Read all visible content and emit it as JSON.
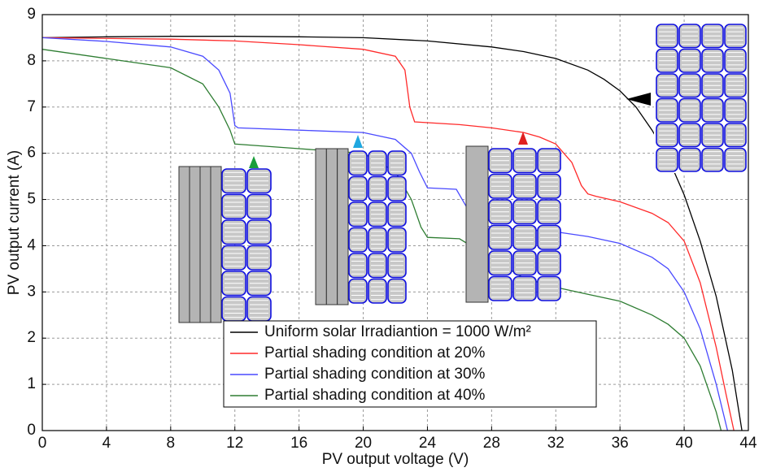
{
  "chart_data": {
    "type": "line",
    "xlabel": "PV output voltage (V)",
    "ylabel": "PV output current (A)",
    "xlim": [
      0,
      44
    ],
    "xticks": [
      0,
      4,
      8,
      12,
      16,
      20,
      24,
      28,
      32,
      36,
      40,
      44
    ],
    "ylim": [
      0,
      9
    ],
    "yticks": [
      0,
      1,
      2,
      3,
      4,
      5,
      6,
      7,
      8,
      9
    ],
    "grid": true,
    "series": [
      {
        "name": "Uniform solar Irradiantion = 1000 W/m²",
        "color": "#000000",
        "x": [
          0,
          4,
          8,
          12,
          16,
          20,
          24,
          28,
          30,
          32,
          34,
          35,
          36,
          37,
          38,
          39,
          40,
          41,
          42,
          43,
          43.6
        ],
        "values": [
          8.5,
          8.52,
          8.53,
          8.53,
          8.52,
          8.5,
          8.43,
          8.3,
          8.2,
          8.05,
          7.8,
          7.6,
          7.35,
          7.0,
          6.5,
          5.9,
          5.1,
          4.1,
          2.9,
          1.3,
          0
        ]
      },
      {
        "name": "Partial shading condition at 20%",
        "color": "#ff2a2a",
        "x": [
          0,
          8,
          12,
          16,
          20,
          22,
          22.6,
          22.9,
          23.2,
          26,
          28,
          30,
          31,
          32,
          33,
          33.6,
          34,
          34.5,
          36,
          38,
          39,
          40,
          41,
          42,
          42.6,
          43.1
        ],
        "values": [
          8.5,
          8.47,
          8.43,
          8.35,
          8.25,
          8.1,
          7.8,
          7.0,
          6.68,
          6.62,
          6.55,
          6.45,
          6.35,
          6.2,
          5.8,
          5.3,
          5.12,
          5.07,
          4.95,
          4.7,
          4.5,
          4.1,
          3.2,
          1.8,
          0.8,
          0
        ]
      },
      {
        "name": "Partial shading condition at 30%",
        "color": "#4a4aff",
        "x": [
          0,
          4,
          8,
          10,
          11,
          11.7,
          12,
          12.2,
          16,
          20,
          22,
          23,
          23.5,
          24,
          25.8,
          27,
          28,
          30,
          32,
          34,
          36,
          38,
          39,
          40,
          41,
          42,
          42.7
        ],
        "values": [
          8.5,
          8.42,
          8.3,
          8.1,
          7.8,
          7.3,
          6.6,
          6.55,
          6.5,
          6.45,
          6.3,
          6.0,
          5.6,
          5.25,
          5.22,
          4.5,
          4.4,
          4.35,
          4.3,
          4.2,
          4.05,
          3.75,
          3.5,
          3.0,
          2.2,
          1.0,
          0
        ]
      },
      {
        "name": "Partial shading condition at 40%",
        "color": "#2e7d32",
        "x": [
          0,
          4,
          8,
          10,
          11,
          11.7,
          12,
          16,
          20,
          22,
          23,
          23.6,
          24,
          26,
          30,
          32,
          34,
          36,
          38,
          39,
          40,
          41,
          42,
          42.3
        ],
        "values": [
          8.25,
          8.05,
          7.85,
          7.5,
          7.0,
          6.5,
          6.2,
          6.1,
          6.0,
          5.6,
          5.0,
          4.4,
          4.18,
          4.15,
          3.3,
          3.1,
          2.95,
          2.8,
          2.5,
          2.3,
          2.0,
          1.4,
          0.4,
          0
        ]
      }
    ]
  }
}
